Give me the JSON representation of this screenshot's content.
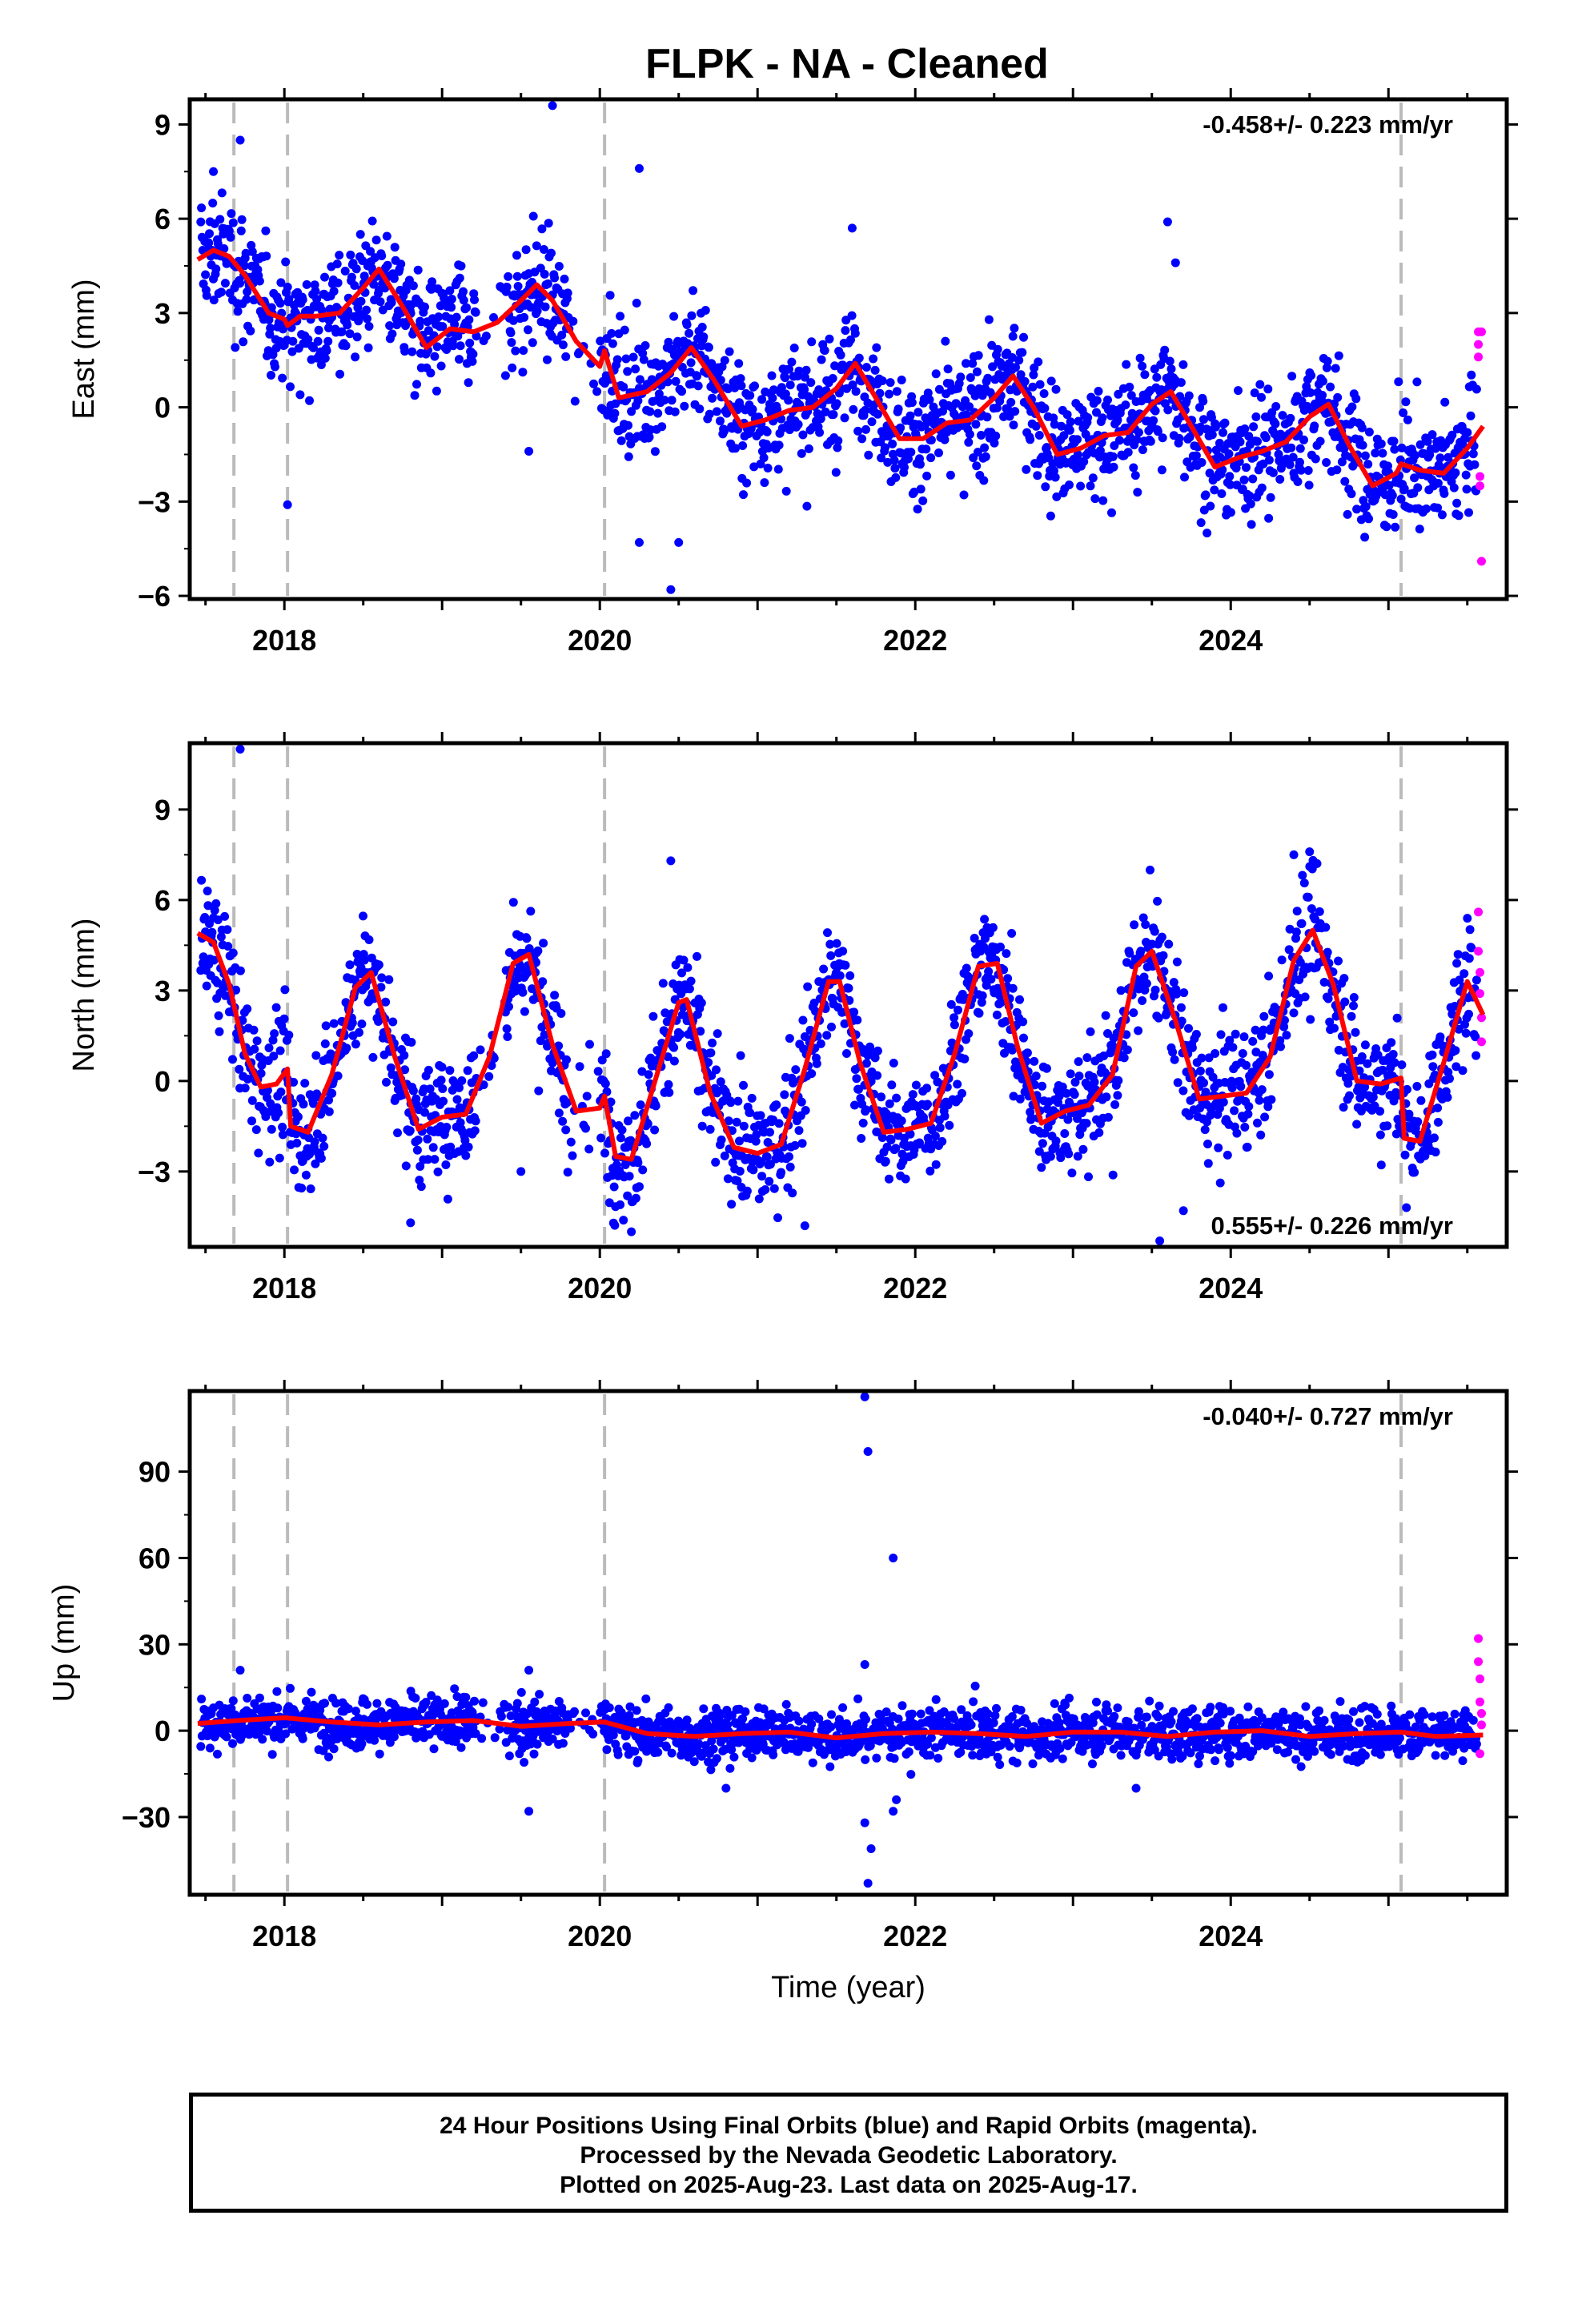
{
  "title": "FLPK  - NA - Cleaned",
  "footer": {
    "line1": "24 Hour Positions Using Final Orbits (blue) and Rapid Orbits (magenta).",
    "line2": "Processed by the Nevada Geodetic Laboratory.",
    "line3": "Plotted on 2025-Aug-23. Last data on 2025-Aug-17."
  },
  "colors": {
    "final": "#0000ff",
    "rapid": "#ff00ff",
    "model": "#ff0000",
    "event": "#bbbbbb"
  },
  "chart_data": [
    {
      "type": "scatter",
      "component": "East",
      "ylabel": "East (mm)",
      "xlabel": "",
      "rate_label": "-0.458+/- 0.223 mm/yr",
      "rate_position": "top-right",
      "xlim": [
        2017.4,
        2025.75
      ],
      "ylim": [
        -6.1,
        9.8
      ],
      "xticks": [
        2018,
        2020,
        2022,
        2024
      ],
      "xtick_labels": [
        "2018",
        "2020",
        "2022",
        "2024"
      ],
      "yticks": [
        -6,
        -3,
        0,
        3,
        6,
        9
      ],
      "ytick_labels": [
        "−6",
        "−3",
        "0",
        "3",
        "6",
        "9"
      ],
      "events": [
        2017.68,
        2018.02,
        2020.03,
        2025.08
      ],
      "series": [
        {
          "role": "model",
          "x": [
            2017.45,
            2017.55,
            2017.65,
            2017.75,
            2017.9,
            2018.0,
            2018.02,
            2018.1,
            2018.2,
            2018.35,
            2018.5,
            2018.6,
            2018.75,
            2018.9,
            2019.05,
            2019.2,
            2019.35,
            2019.5,
            2019.6,
            2019.7,
            2019.85,
            2020.0,
            2020.03,
            2020.12,
            2020.3,
            2020.45,
            2020.58,
            2020.72,
            2020.9,
            2021.05,
            2021.2,
            2021.35,
            2021.5,
            2021.62,
            2021.75,
            2021.9,
            2022.05,
            2022.2,
            2022.35,
            2022.5,
            2022.62,
            2022.75,
            2022.9,
            2023.05,
            2023.2,
            2023.35,
            2023.5,
            2023.62,
            2023.75,
            2023.9,
            2024.05,
            2024.2,
            2024.35,
            2024.5,
            2024.62,
            2024.75,
            2024.9,
            2025.05,
            2025.08,
            2025.2,
            2025.35,
            2025.5,
            2025.6
          ],
          "y": [
            4.7,
            5.0,
            4.8,
            4.2,
            3.0,
            2.8,
            2.6,
            2.9,
            2.9,
            3.0,
            3.8,
            4.4,
            3.2,
            1.9,
            2.5,
            2.4,
            2.7,
            3.4,
            3.9,
            3.4,
            2.1,
            1.3,
            1.8,
            0.3,
            0.5,
            1.1,
            1.9,
            0.9,
            -0.6,
            -0.4,
            -0.1,
            0.0,
            0.6,
            1.4,
            0.3,
            -1.0,
            -1.0,
            -0.5,
            -0.4,
            0.3,
            1.0,
            0.0,
            -1.5,
            -1.3,
            -0.9,
            -0.8,
            0.1,
            0.5,
            -0.6,
            -1.9,
            -1.6,
            -1.4,
            -1.1,
            -0.3,
            0.1,
            -1.2,
            -2.5,
            -2.1,
            -1.8,
            -2.0,
            -2.1,
            -1.3,
            -0.6
          ]
        },
        {
          "role": "outliers",
          "x": [
            2017.55,
            2017.72,
            2018.02,
            2020.25,
            2020.45,
            2020.5,
            2019.7,
            2019.55,
            2021.6,
            2023.6,
            2023.65,
            2020.25
          ],
          "y": [
            7.5,
            8.5,
            -3.1,
            7.6,
            -5.8,
            -4.3,
            9.6,
            -1.4,
            5.7,
            5.9,
            4.6,
            -4.3
          ]
        },
        {
          "role": "rapid",
          "x": [
            2025.57,
            2025.57,
            2025.57,
            2025.58,
            2025.58,
            2025.59,
            2025.59
          ],
          "y": [
            2.4,
            2.0,
            1.6,
            -2.2,
            -2.5,
            2.4,
            -4.9
          ]
        }
      ]
    },
    {
      "type": "scatter",
      "component": "North",
      "ylabel": "North (mm)",
      "xlabel": "",
      "rate_label": "0.555+/- 0.226 mm/yr",
      "rate_position": "bottom-right",
      "xlim": [
        2017.4,
        2025.75
      ],
      "ylim": [
        -5.5,
        11.2
      ],
      "xticks": [
        2018,
        2020,
        2022,
        2024
      ],
      "xtick_labels": [
        "2018",
        "2020",
        "2022",
        "2024"
      ],
      "yticks": [
        -3,
        0,
        3,
        6,
        9
      ],
      "ytick_labels": [
        "−3",
        "0",
        "3",
        "6",
        "9"
      ],
      "events": [
        2017.68,
        2018.02,
        2020.03,
        2025.08
      ],
      "series": [
        {
          "role": "model",
          "x": [
            2017.45,
            2017.55,
            2017.65,
            2017.75,
            2017.85,
            2017.95,
            2018.02,
            2018.04,
            2018.15,
            2018.3,
            2018.45,
            2018.55,
            2018.7,
            2018.85,
            2019.0,
            2019.15,
            2019.3,
            2019.45,
            2019.55,
            2019.7,
            2019.85,
            2020.0,
            2020.03,
            2020.1,
            2020.2,
            2020.35,
            2020.5,
            2020.55,
            2020.7,
            2020.85,
            2021.0,
            2021.15,
            2021.3,
            2021.45,
            2021.52,
            2021.65,
            2021.8,
            2021.95,
            2022.1,
            2022.25,
            2022.4,
            2022.52,
            2022.65,
            2022.8,
            2022.95,
            2023.1,
            2023.25,
            2023.4,
            2023.5,
            2023.65,
            2023.8,
            2023.95,
            2024.1,
            2024.25,
            2024.4,
            2024.52,
            2024.65,
            2024.8,
            2024.95,
            2025.08,
            2025.1,
            2025.2,
            2025.35,
            2025.5,
            2025.6
          ],
          "y": [
            4.9,
            4.6,
            3.2,
            0.9,
            -0.2,
            -0.1,
            0.4,
            -1.5,
            -1.7,
            0.2,
            3.1,
            3.6,
            0.8,
            -1.6,
            -1.2,
            -1.1,
            0.8,
            3.9,
            4.2,
            1.2,
            -1.0,
            -0.9,
            -0.5,
            -2.5,
            -2.6,
            0.0,
            2.6,
            2.7,
            -0.4,
            -2.2,
            -2.4,
            -2.1,
            0.4,
            3.3,
            3.3,
            0.6,
            -1.7,
            -1.6,
            -1.4,
            0.9,
            3.8,
            3.9,
            1.1,
            -1.4,
            -1.0,
            -0.8,
            0.2,
            3.8,
            4.3,
            2.0,
            -0.6,
            -0.5,
            -0.4,
            0.8,
            4.0,
            5.0,
            3.2,
            0.0,
            -0.1,
            0.1,
            -1.9,
            -2.0,
            0.6,
            3.3,
            2.2
          ]
        },
        {
          "role": "outliers",
          "x": [
            2017.72,
            2020.45,
            2024.4,
            2024.5,
            2023.7,
            2023.55,
            2019.5,
            2018.8,
            2020.2,
            2021.3
          ],
          "y": [
            11.0,
            7.3,
            7.5,
            7.6,
            -4.3,
            -5.3,
            -3.0,
            -4.7,
            -5.0,
            -4.8
          ]
        },
        {
          "role": "rapid",
          "x": [
            2025.57,
            2025.57,
            2025.58,
            2025.58,
            2025.59,
            2025.59
          ],
          "y": [
            5.6,
            4.3,
            3.6,
            2.9,
            2.1,
            1.3
          ]
        }
      ]
    },
    {
      "type": "scatter",
      "component": "Up",
      "ylabel": "Up (mm)",
      "xlabel": "Time (year)",
      "rate_label": "-0.040+/- 0.727 mm/yr",
      "rate_position": "top-right",
      "xlim": [
        2017.4,
        2025.75
      ],
      "ylim": [
        -57,
        118
      ],
      "xticks": [
        2018,
        2020,
        2022,
        2024
      ],
      "xtick_labels": [
        "2018",
        "2020",
        "2022",
        "2024"
      ],
      "yticks": [
        -30,
        0,
        30,
        60,
        90
      ],
      "ytick_labels": [
        "−30",
        "0",
        "30",
        "60",
        "90"
      ],
      "events": [
        2017.68,
        2018.02,
        2020.03,
        2025.08
      ],
      "series": [
        {
          "role": "model",
          "x": [
            2017.45,
            2017.7,
            2018.0,
            2018.3,
            2018.6,
            2018.9,
            2019.2,
            2019.5,
            2019.8,
            2020.03,
            2020.3,
            2020.6,
            2020.9,
            2021.2,
            2021.5,
            2021.8,
            2022.1,
            2022.4,
            2022.7,
            2023.0,
            2023.3,
            2023.6,
            2023.9,
            2024.2,
            2024.5,
            2024.8,
            2025.08,
            2025.3,
            2025.6
          ],
          "y": [
            2.5,
            3.5,
            4.5,
            3.0,
            2.0,
            3.0,
            3.5,
            1.5,
            2.5,
            3.0,
            -1.0,
            -2.0,
            -1.0,
            -0.5,
            -2.5,
            -1.0,
            -0.5,
            -1.0,
            -2.0,
            -0.5,
            -0.5,
            -2.0,
            -0.5,
            0.0,
            -2.0,
            -1.0,
            -0.5,
            -2.0,
            -1.5
          ]
        },
        {
          "role": "outliers",
          "x": [
            2021.68,
            2021.7,
            2021.86,
            2021.68,
            2021.68,
            2021.72,
            2021.7,
            2021.88,
            2021.86,
            2019.55,
            2019.55,
            2020.8,
            2023.4,
            2017.72
          ],
          "y": [
            116,
            97,
            60,
            23,
            -32,
            -41,
            -53,
            -24,
            -28,
            21,
            -28,
            -20,
            -20,
            21
          ]
        },
        {
          "role": "rapid",
          "x": [
            2025.57,
            2025.57,
            2025.58,
            2025.58,
            2025.59,
            2025.59,
            2025.58
          ],
          "y": [
            32,
            24,
            18,
            10,
            6,
            2,
            -8
          ]
        }
      ]
    }
  ]
}
